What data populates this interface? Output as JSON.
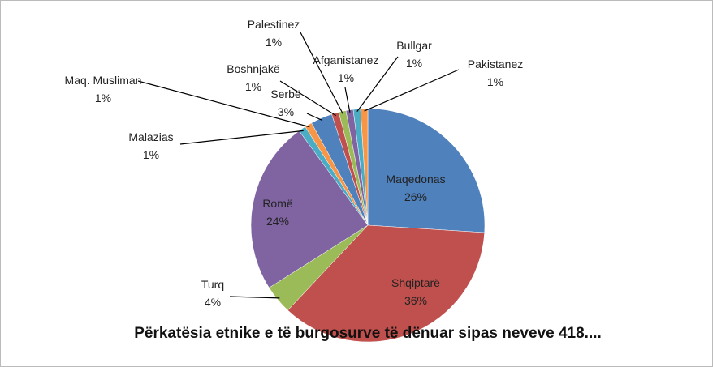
{
  "chart_data": {
    "type": "pie",
    "title": "Përkatësia etnike e të burgosurve të dënuar sipas neveve 418....",
    "categories": [
      "Maqedonas",
      "Shqiptarë",
      "Turq",
      "Romë",
      "Malazias",
      "Maq. Musliman",
      "Serbë",
      "Boshnjakë",
      "Palestinez",
      "Afganistanez",
      "Bullgar",
      "Pakistanez"
    ],
    "values": [
      26,
      36,
      4,
      24,
      1,
      1,
      3,
      1,
      1,
      1,
      1,
      1
    ],
    "value_labels": [
      "26%",
      "36%",
      "4%",
      "24%",
      "1%",
      "1%",
      "3%",
      "1%",
      "1%",
      "1%",
      "1%",
      "1%"
    ],
    "colors": [
      "#4f81bd",
      "#c0504d",
      "#9bbb59",
      "#8064a2",
      "#4bacc6",
      "#f79646",
      "#4f81bd",
      "#c0504d",
      "#9bbb59",
      "#8064a2",
      "#4bacc6",
      "#f79646"
    ]
  }
}
